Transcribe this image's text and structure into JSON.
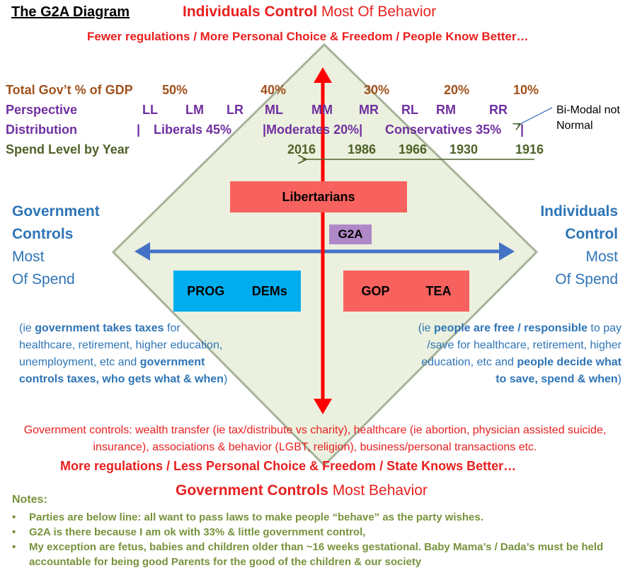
{
  "title": "The G2A Diagram",
  "top": {
    "heading_bold": "Individuals Control",
    "heading_rest": " Most Of Behavior",
    "subheading": "Fewer regulations / More Personal Choice & Freedom / People Know Better…"
  },
  "rows": {
    "gdp": {
      "label": "Total Gov’t % of GDP",
      "values": [
        "50%",
        "40%",
        "30%",
        "20%",
        "10%"
      ]
    },
    "perspective": {
      "label": "Perspective",
      "values": [
        "LL",
        "LM",
        "LR",
        "ML",
        "MM",
        "MR",
        "RL",
        "RM",
        "RR"
      ]
    },
    "distribution": {
      "label": "Distribution",
      "pipe": "|",
      "values": [
        "Liberals 45%",
        "|Moderates 20%|",
        "Conservatives 35%",
        "|"
      ]
    },
    "spend": {
      "label": "Spend Level by Year",
      "values": [
        "2016",
        "1986",
        "1966",
        "1930",
        "1916"
      ]
    }
  },
  "callout": "Bi-Modal not Normal",
  "left_side": {
    "bold_line1": "Government",
    "bold_line2": "Controls",
    "line3": "Most",
    "line4": "Of Spend"
  },
  "right_side": {
    "bold_line1": "Individuals",
    "bold_line2": "Control",
    "line3": "Most",
    "line4": "Of Spend"
  },
  "boxes": {
    "libertarians": "Libertarians",
    "g2a": "G2A",
    "prog": "PROG",
    "dems": "DEMs",
    "gop": "GOP",
    "tea": "TEA"
  },
  "left_para": {
    "p1": "(ie ",
    "b1": "government takes taxes",
    "p2": " for healthcare, retirement, higher education, unemployment, etc and ",
    "b2": "government controls taxes, who gets what & when",
    "p3": ")"
  },
  "right_para": {
    "p1": "(ie ",
    "b1": "people are free / responsible",
    "p2": " to pay /save for healthcare, retirement, higher education, etc and ",
    "b2": "people decide what to save, spend & when",
    "p3": ")"
  },
  "controls_text": "Government controls: wealth transfer (ie tax/distribute vs charity), healthcare (ie abortion, physician assisted suicide, insurance), associations & behavior (LGBT, religion), business/personal transactions  etc.",
  "bottom": {
    "subheading": "More regulations / Less Personal Choice & Freedom / State Knows Better…",
    "heading_bold": "Government Controls",
    "heading_rest": " Most Behavior"
  },
  "notes": {
    "title": "Notes:",
    "items": [
      "Parties are below line: all want to pass laws to make people “behave” as the party wishes.",
      "G2A is there because I am ok with 33% & little government control,",
      "My exception are fetus, babies and children older than ~16 weeks gestational.  Baby Mama’s / Dada’s must be held accountable for being good Parents for the good of the children & our society"
    ]
  },
  "colors": {
    "diamond_fill": "#ebf1de",
    "diamond_stroke": "#a6b39a",
    "vertical_arrow": "#ff0000",
    "horizontal_arrow": "#4472c4",
    "spend_arrow": "#4f6228",
    "libertarians": "#f8625e",
    "g2a": "#ae88c7",
    "dems": "#00aef0",
    "gop": "#f8625e"
  }
}
